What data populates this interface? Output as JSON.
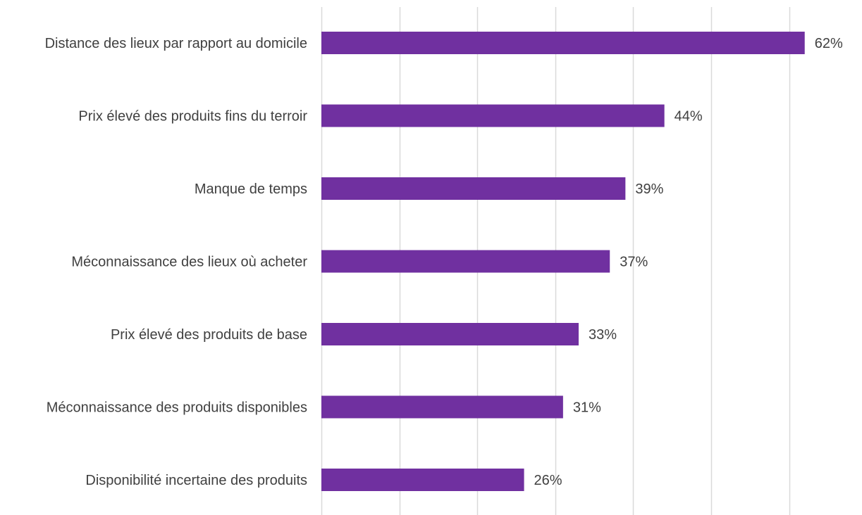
{
  "chart_data": {
    "type": "bar",
    "orientation": "horizontal",
    "categories": [
      "Distance des lieux par rapport au domicile",
      "Prix élevé des produits fins du terroir",
      "Manque de temps",
      "Méconnaissance des lieux où acheter",
      "Prix élevé des produits de base",
      "Méconnaissance des produits disponibles",
      "Disponibilité incertaine des produits"
    ],
    "values": [
      62,
      44,
      39,
      37,
      33,
      31,
      26
    ],
    "data_labels": [
      "62%",
      "44%",
      "39%",
      "37%",
      "33%",
      "31%",
      "26%"
    ],
    "xlim": [
      0,
      60
    ],
    "grid": true,
    "grid_step": 10,
    "bar_color": "#7030a0",
    "title": "",
    "xlabel": "",
    "ylabel": ""
  }
}
